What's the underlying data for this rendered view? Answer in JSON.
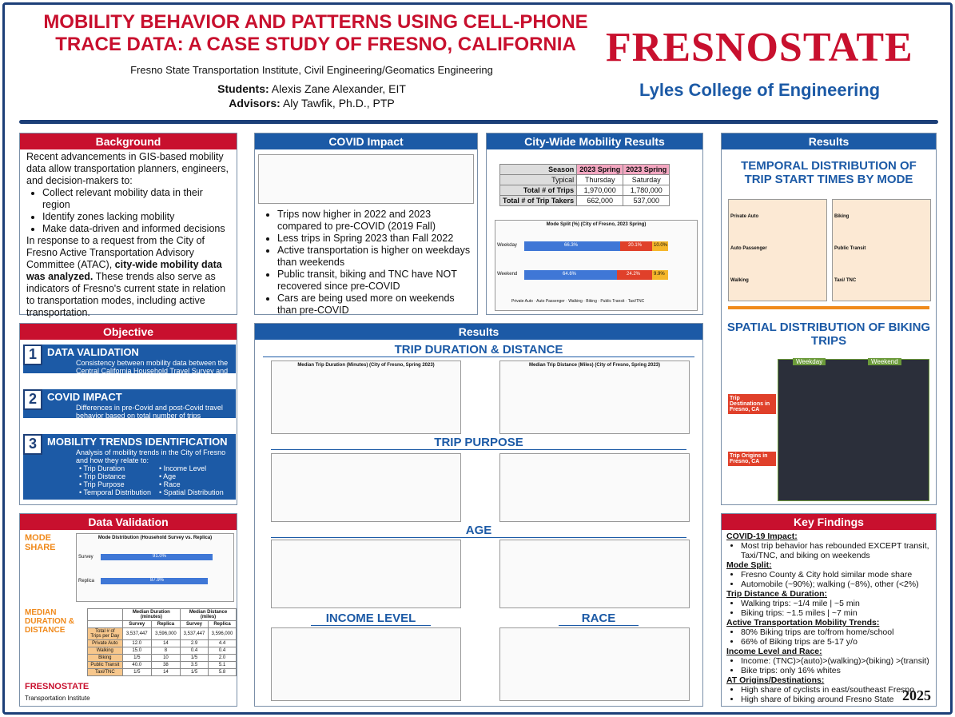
{
  "header": {
    "title_line1": "MOBILITY BEHAVIOR AND PATTERNS USING CELL-PHONE",
    "title_line2": "TRACE DATA: A CASE STUDY OF FRESNO, CALIFORNIA",
    "institute": "Fresno State Transportation Institute, Civil Engineering/Geomatics Engineering",
    "students_label": "Students:",
    "students": "Alexis Zane Alexander, EIT",
    "advisors_label": "Advisors:",
    "advisors": "Aly Tawfik, Ph.D., PTP",
    "logo_text": "FRESNOSTATE",
    "college": "Lyles College of Engineering"
  },
  "background": {
    "title": "Background",
    "intro": "Recent advancements in GIS-based mobility data allow transportation planners, engineers, and decision-makers to:",
    "bullets": [
      "Collect relevant mobility data in their region",
      "Identify zones lacking mobility",
      "Make data-driven and informed decisions"
    ],
    "para_a": "In response to a request from the City of Fresno Active Transportation Advisory Committee (ATAC), ",
    "para_bold": "city-wide mobility data was analyzed.",
    "para_b": " These trends also serve as indicators of Fresno's current state in relation to transportation modes, including active transportation."
  },
  "objective": {
    "title": "Objective",
    "items": [
      {
        "num": "1",
        "title": "DATA VALIDATION",
        "desc": "Consistency between mobility data between the Central California Household Travel Survey and Replica"
      },
      {
        "num": "2",
        "title": "COVID IMPACT",
        "desc": "Differences in pre-Covid and post-Covid travel behavior based on total number of trips"
      },
      {
        "num": "3",
        "title": "MOBILITY TRENDS IDENTIFICATION",
        "desc": "Analysis of mobility trends in the City of Fresno and how they relate to:"
      }
    ],
    "trends_left": [
      "Trip Duration",
      "Trip Distance",
      "Trip Purpose",
      "Temporal Distribution"
    ],
    "trends_right": [
      "Income Level",
      "Age",
      "Race",
      "Spatial Distribution"
    ]
  },
  "data_validation": {
    "title": "Data Validation",
    "mode_share": "MODE SHARE",
    "median": "MEDIAN DURATION & DISTANCE",
    "chart_title": "Mode Distribution (Household Survey vs. Replica)",
    "rows": [
      "Survey",
      "Replica"
    ],
    "survey_pct": "91.0%",
    "replica_pct": "87.9%",
    "table_headers": [
      "Median Duration (minutes)",
      "Median Distance (miles)"
    ],
    "sub_headers": [
      "Survey",
      "Replica",
      "Survey",
      "Replica"
    ],
    "table_rows": [
      [
        "Total # of Trips per Day",
        "3,537,447",
        "3,596,000",
        "3,537,447",
        "3,596,000"
      ],
      [
        "Private Auto",
        "12.0",
        "14",
        "2.9",
        "4.4"
      ],
      [
        "Walking",
        "15.0",
        "8",
        "0.4",
        "0.4"
      ],
      [
        "Biking",
        "1/5",
        "10",
        "1/5",
        "2.0"
      ],
      [
        "Public Transit",
        "40.0",
        "38",
        "3.5",
        "5.1"
      ],
      [
        "Taxi/TNC",
        "1/5",
        "14",
        "1/5",
        "5.8"
      ]
    ],
    "footer": "Transportation Institute"
  },
  "covid": {
    "title": "COVID Impact",
    "bullets": [
      "Trips now higher in 2022 and 2023 compared to pre-COVID (2019 Fall)",
      "Less trips in Spring 2023 than Fall 2022",
      "Active transportation is higher on weekdays than weekends",
      "Public transit, biking and TNC have NOT recovered since pre-COVID",
      "Cars are being used more on weekends than pre-COVID"
    ]
  },
  "citywide": {
    "title": "City-Wide Mobility Results",
    "season_label": "Season",
    "typical_label": "Typical",
    "cols": [
      "2023 Spring",
      "2023 Spring"
    ],
    "days": [
      "Thursday",
      "Saturday"
    ],
    "rows": [
      [
        "Total # of Trips",
        "1,970,000",
        "1,780,000"
      ],
      [
        "Total # of Trip Takers",
        "662,000",
        "537,000"
      ]
    ],
    "mode_split_title": "Mode Split (%) (City of Fresno, 2023 Spring)",
    "weekday_label": "Weekday",
    "weekend_label": "Weekend",
    "weekday_vals": [
      "66.3%",
      "20.1%",
      "10.0%"
    ],
    "weekend_vals": [
      "64.6%",
      "24.2%",
      "9.9%"
    ],
    "legend": [
      "Private Auto",
      "Auto Passenger",
      "Walking",
      "Biking",
      "Public Transit",
      "Taxi/TNC"
    ]
  },
  "results_mid": {
    "title": "Results",
    "trip_dd": "TRIP DURATION & DISTANCE",
    "dur_title": "Median Trip Duration (Minutes) (City of Fresno, Spring 2023)",
    "dist_title": "Median Trip Distance (Miles) (City of Fresno, Spring 2023)",
    "trip_purpose": "TRIP PURPOSE",
    "age": "AGE",
    "income": "INCOME LEVEL",
    "race": "RACE"
  },
  "results_right": {
    "title": "Results",
    "temporal": "TEMPORAL DISTRIBUTION OF TRIP START TIMES BY MODE",
    "modes_left": [
      "Private Auto",
      "Auto Passenger",
      "Walking"
    ],
    "modes_right": [
      "Biking",
      "Public Transit",
      "Taxi/ TNC"
    ],
    "weekday": "Weekday",
    "weekend": "Weekend",
    "spatial": "SPATIAL DISTRIBUTION OF BIKING TRIPS",
    "dest": "Trip Destinations in Fresno, CA",
    "orig": "Trip Origins in Fresno, CA"
  },
  "key_findings": {
    "title": "Key Findings",
    "sections": [
      {
        "head": "COVID-19 Impact:",
        "items": [
          "Most trip behavior has rebounded EXCEPT transit, Taxi/TNC, and biking on weekends"
        ]
      },
      {
        "head": "Mode Split:",
        "items": [
          "Fresno County & City hold similar mode share",
          "Automobile (~90%); walking (~8%), other (<2%)"
        ]
      },
      {
        "head": "Trip Distance & Duration:",
        "items": [
          "Walking trips: ~1/4 mile | ~5 min",
          "Biking trips: ~1.5 miles | ~7 min"
        ]
      },
      {
        "head": "Active Transportation Mobility Trends:",
        "items": [
          "80% Biking trips are to/from home/school",
          "66% of Biking trips are 5-17 y/o"
        ]
      },
      {
        "head": "Income Level and Race:",
        "items": [
          "Income: (TNC)>(auto)>(walking)>(biking) >(transit)",
          "Bike trips: only 16% whites"
        ]
      },
      {
        "head": "AT Origins/Destinations:",
        "items": [
          "High share of cyclists in east/southeast Fresno",
          "High share of biking around Fresno State"
        ]
      }
    ],
    "year": "2025"
  }
}
